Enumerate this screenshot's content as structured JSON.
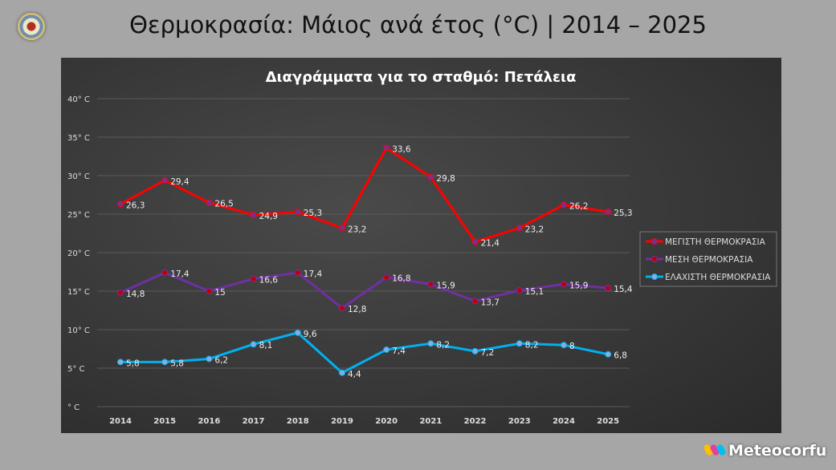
{
  "header": {
    "title": "Θερμοκρασία: Μάιος ανά έτος (°C) | 2014 – 2025",
    "brand": "Meteocorfu"
  },
  "chart_data": {
    "type": "line",
    "title": "Διαγράμματα για το σταθμό: Πετάλεια",
    "categories": [
      "2014",
      "2015",
      "2016",
      "2017",
      "2018",
      "2019",
      "2020",
      "2021",
      "2022",
      "2023",
      "2024",
      "2025"
    ],
    "ylim": [
      0,
      40
    ],
    "yticks": [
      0,
      5,
      10,
      15,
      20,
      25,
      30,
      35,
      40
    ],
    "ytick_labels": [
      "° C",
      "5° C",
      "10° C",
      "15° C",
      "20° C",
      "25° C",
      "30° C",
      "35° C",
      "40° C"
    ],
    "grid": true,
    "legend_position": "right",
    "series": [
      {
        "name": "ΜΕΓΙΣΤΗ ΘΕΡΜΟΚΡΑΣΙΑ",
        "color": "#ff0000",
        "marker": "#7030a0",
        "values": [
          26.3,
          29.4,
          26.5,
          24.9,
          25.3,
          23.2,
          33.6,
          29.8,
          21.4,
          23.2,
          26.2,
          25.3
        ],
        "labels": [
          "26,3",
          "29,4",
          "26,5",
          "24,9",
          "25,3",
          "23,2",
          "33,6",
          "29,8",
          "21,4",
          "23,2",
          "26,2",
          "25,3"
        ]
      },
      {
        "name": "ΜΕΣΗ ΘΕΡΜΟΚΡΑΣΙΑ",
        "color": "#7030a0",
        "marker": "#c00000",
        "values": [
          14.8,
          17.4,
          15,
          16.6,
          17.4,
          12.8,
          16.8,
          15.9,
          13.7,
          15.1,
          15.9,
          15.4
        ],
        "labels": [
          "14,8",
          "17,4",
          "15",
          "16,6",
          "17,4",
          "12,8",
          "16,8",
          "15,9",
          "13,7",
          "15,1",
          "15,9",
          "15,4"
        ]
      },
      {
        "name": "ΕΛΑΧΙΣΤΗ ΘΕΡΜΟΚΡΑΣΙΑ",
        "color": "#00b0f0",
        "marker": "#8faadc",
        "values": [
          5.8,
          5.8,
          6.2,
          8.1,
          9.6,
          4.4,
          7.4,
          8.2,
          7.2,
          8.2,
          8,
          6.8
        ],
        "labels": [
          "5,8",
          "5,8",
          "6,2",
          "8,1",
          "9,6",
          "4,4",
          "7,4",
          "8,2",
          "7,2",
          "8,2",
          "8",
          "6,8"
        ]
      }
    ]
  }
}
